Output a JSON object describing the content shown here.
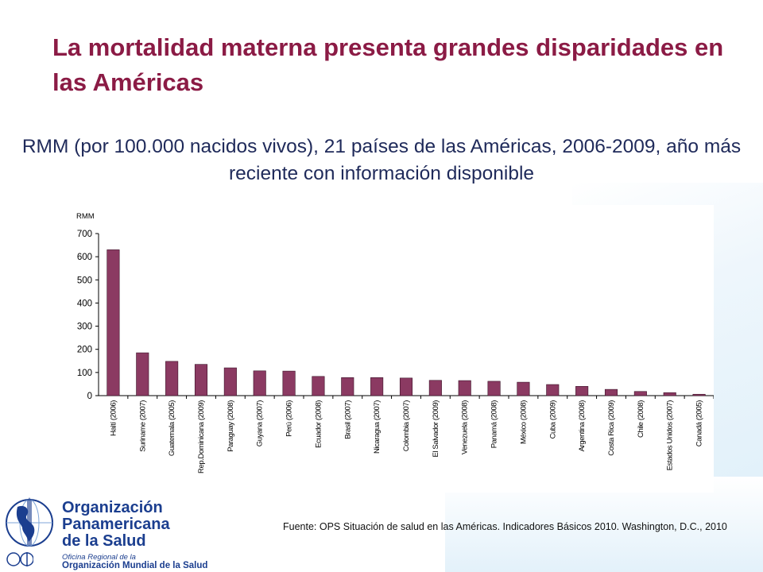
{
  "slide": {
    "title": "La mortalidad materna presenta grandes disparidades en las Américas",
    "subtitle": "RMM (por 100.000 nacidos vivos), 21 países de las Américas, 2006-2009, año más reciente con información disponible",
    "source": "Fuente: OPS Situación de salud en las Américas. Indicadores Básicos 2010. Washington, D.C., 2010"
  },
  "logo": {
    "line1": "Organización",
    "line2": "Panamericana",
    "line3": "de la Salud",
    "small": "Oficina Regional de la",
    "who": "Organización Mundial de la Salud"
  },
  "colors": {
    "title": "#8b1b45",
    "subtitle": "#1f2a5a",
    "bar": "#8b3a62",
    "logo": "#1b3e8f"
  },
  "chart_data": {
    "type": "bar",
    "ylabel": "RMM",
    "ylim": [
      0,
      700
    ],
    "yticks": [
      0,
      100,
      200,
      300,
      400,
      500,
      600,
      700
    ],
    "grid": false,
    "categories": [
      "Haití (2006)",
      "Suriname (2007)",
      "Guatemala (2005)",
      "Rep.Dominicana (2009)",
      "Paraguay (2008)",
      "Guyana (2007)",
      "Perú (2006)",
      "Ecuador (2008)",
      "Brasil (2007)",
      "Nicaragua (2007)",
      "Colombia (2007)",
      "El Salvador (2009)",
      "Venezuela (2008)",
      "Panamá (2008)",
      "México (2008)",
      "Cuba (2009)",
      "Argentina (2008)",
      "Costa Rica (2009)",
      "Chile (2008)",
      "Estados Unidos (2007)",
      "Canadá (2005)"
    ],
    "values": [
      630,
      185,
      148,
      135,
      120,
      107,
      106,
      83,
      78,
      78,
      76,
      66,
      65,
      62,
      58,
      48,
      40,
      27,
      18,
      13,
      6
    ]
  }
}
